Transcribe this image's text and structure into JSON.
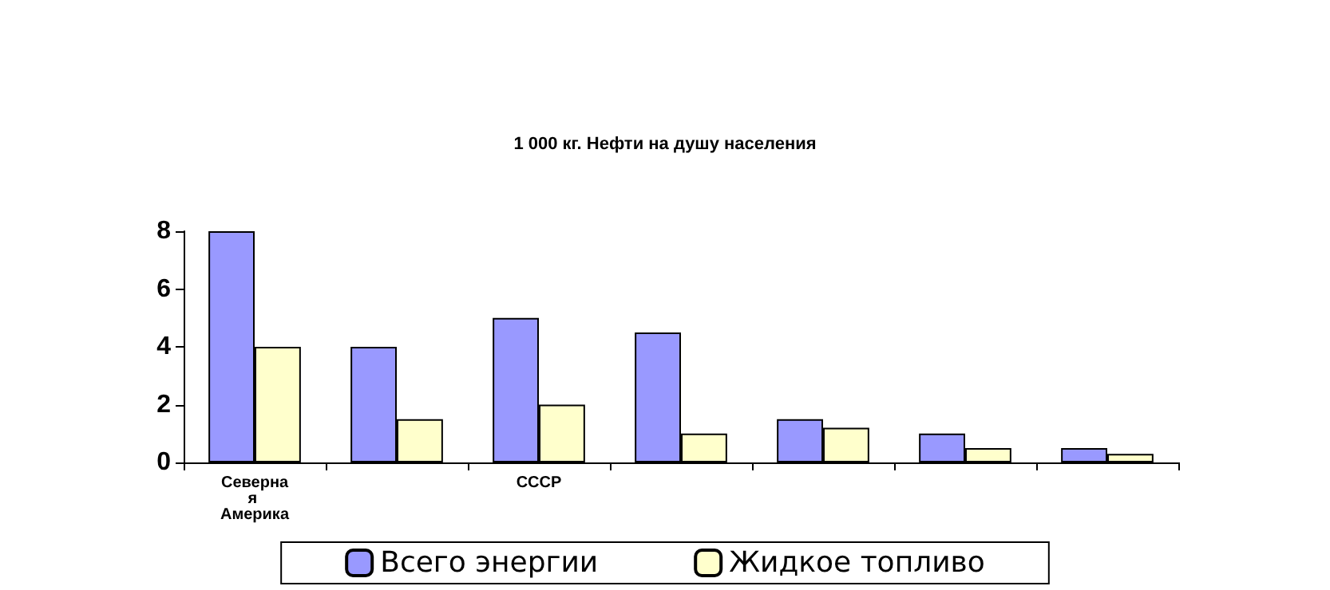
{
  "chart_data": {
    "type": "bar",
    "title": "1 000 кг. Нефти на душу населения",
    "categories": [
      "Северная Америка",
      null,
      "СССР",
      null,
      null,
      null,
      null
    ],
    "series": [
      {
        "name": "Всего энергии",
        "color": "#9999ff",
        "values": [
          8,
          4,
          5,
          4.5,
          1.5,
          1,
          0.5
        ]
      },
      {
        "name": "Жидкое топливо",
        "color": "#ffffcc",
        "values": [
          4,
          1.5,
          2,
          1,
          1.2,
          0.5,
          0.3
        ]
      }
    ],
    "ylim": [
      0,
      8
    ],
    "yticks": [
      0,
      2,
      4,
      6,
      8
    ],
    "grid": false,
    "legend": "bottom"
  }
}
